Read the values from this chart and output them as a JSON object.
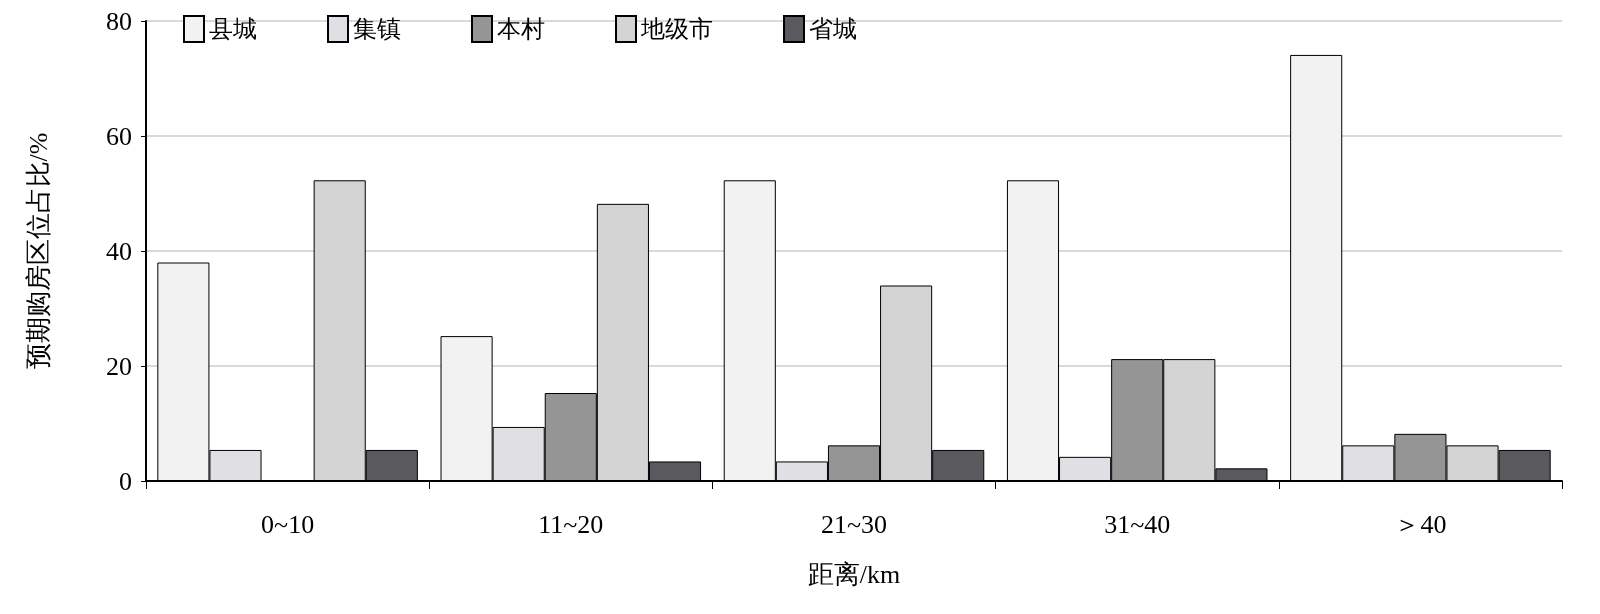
{
  "chart_data": {
    "type": "bar",
    "xlabel": "距离/km",
    "ylabel": "预期购房区位占比/%",
    "categories": [
      "0~10",
      "11~20",
      "21~30",
      "31~40",
      "＞40"
    ],
    "ylim": [
      0,
      80
    ],
    "yticks": [
      0,
      20,
      40,
      60,
      80
    ],
    "grid": "y",
    "legend": "top left",
    "series": [
      {
        "name": "县城",
        "color": "#f2f2f2",
        "values": [
          38,
          25.2,
          52.3,
          52.3,
          74.1
        ]
      },
      {
        "name": "集镇",
        "color": "#e0e0e4",
        "values": [
          5.4,
          9.4,
          3.4,
          4.2,
          6.2
        ]
      },
      {
        "name": "本村",
        "color": "#959595",
        "values": [
          null,
          15.3,
          6.2,
          21.2,
          8.2
        ]
      },
      {
        "name": "地级市",
        "color": "#d4d4d4",
        "values": [
          52.3,
          48.2,
          34,
          21.2,
          6.2
        ]
      },
      {
        "name": "省城",
        "color": "#5a5a5e",
        "values": [
          5.4,
          3.4,
          5.4,
          2.2,
          5.4
        ]
      }
    ]
  }
}
